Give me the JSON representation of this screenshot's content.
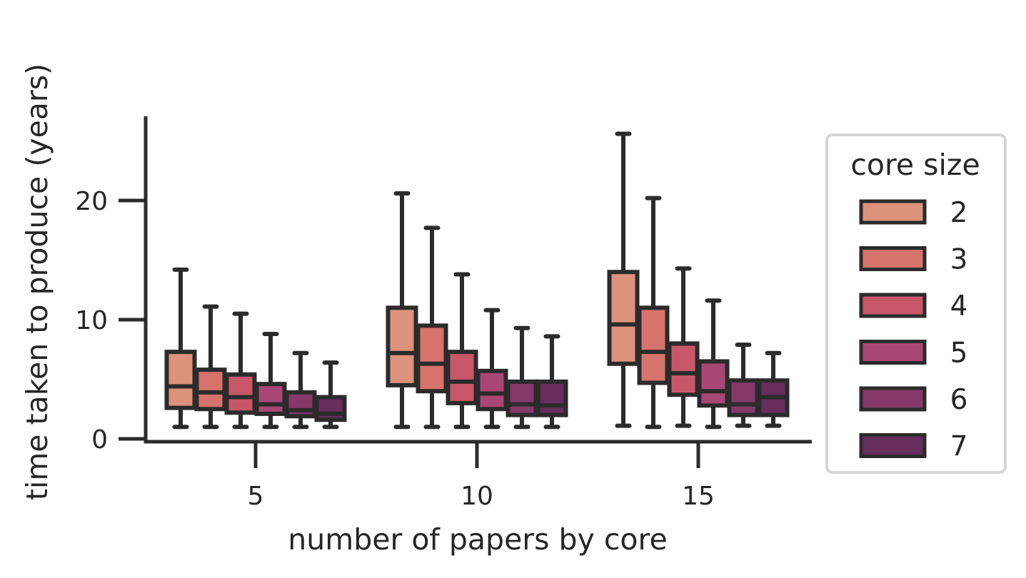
{
  "chart_data": {
    "type": "boxplot",
    "xlabel": "number of papers by core",
    "ylabel": "time taken to produce (years)",
    "categories": [
      "5",
      "10",
      "15"
    ],
    "yticks": [
      0,
      10,
      20
    ],
    "ylim": [
      -0.3,
      27
    ],
    "grid": false,
    "legend": {
      "title": "core size",
      "placement": "right"
    },
    "series": [
      {
        "name": "2",
        "color": "#dd937b",
        "boxes": [
          {
            "whislo": 1.0,
            "q1": 2.6,
            "med": 4.4,
            "q3": 7.3,
            "whishi": 14.2
          },
          {
            "whislo": 1.0,
            "q1": 4.5,
            "med": 7.2,
            "q3": 11.0,
            "whishi": 20.6
          },
          {
            "whislo": 1.1,
            "q1": 6.3,
            "med": 9.6,
            "q3": 14.0,
            "whishi": 25.6
          }
        ]
      },
      {
        "name": "3",
        "color": "#d6736a",
        "boxes": [
          {
            "whislo": 1.0,
            "q1": 2.5,
            "med": 3.9,
            "q3": 5.8,
            "whishi": 11.1
          },
          {
            "whislo": 1.0,
            "q1": 4.0,
            "med": 6.3,
            "q3": 9.5,
            "whishi": 17.7
          },
          {
            "whislo": 1.0,
            "q1": 4.7,
            "med": 7.3,
            "q3": 11.0,
            "whishi": 20.2
          }
        ]
      },
      {
        "name": "4",
        "color": "#c8576a",
        "boxes": [
          {
            "whislo": 1.0,
            "q1": 2.2,
            "med": 3.5,
            "q3": 5.4,
            "whishi": 10.5
          },
          {
            "whislo": 1.0,
            "q1": 3.0,
            "med": 4.8,
            "q3": 7.3,
            "whishi": 13.8
          },
          {
            "whislo": 1.1,
            "q1": 3.7,
            "med": 5.5,
            "q3": 8.0,
            "whishi": 14.3
          }
        ]
      },
      {
        "name": "5",
        "color": "#a84774",
        "boxes": [
          {
            "whislo": 1.0,
            "q1": 2.1,
            "med": 2.9,
            "q3": 4.6,
            "whishi": 8.8
          },
          {
            "whislo": 1.0,
            "q1": 2.5,
            "med": 3.8,
            "q3": 5.7,
            "whishi": 10.8
          },
          {
            "whislo": 1.0,
            "q1": 2.8,
            "med": 4.0,
            "q3": 6.5,
            "whishi": 11.6
          }
        ]
      },
      {
        "name": "6",
        "color": "#86386b",
        "boxes": [
          {
            "whislo": 1.0,
            "q1": 1.9,
            "med": 2.4,
            "q3": 3.9,
            "whishi": 7.2
          },
          {
            "whislo": 1.0,
            "q1": 2.0,
            "med": 2.9,
            "q3": 4.8,
            "whishi": 9.3
          },
          {
            "whislo": 1.1,
            "q1": 2.0,
            "med": 2.9,
            "q3": 4.9,
            "whishi": 7.9
          }
        ]
      },
      {
        "name": "7",
        "color": "#662d5d",
        "boxes": [
          {
            "whislo": 1.0,
            "q1": 1.6,
            "med": 2.1,
            "q3": 3.5,
            "whishi": 6.4
          },
          {
            "whislo": 1.0,
            "q1": 2.0,
            "med": 2.8,
            "q3": 4.8,
            "whishi": 8.6
          },
          {
            "whislo": 1.1,
            "q1": 2.0,
            "med": 3.5,
            "q3": 4.9,
            "whishi": 7.2
          }
        ]
      }
    ]
  }
}
